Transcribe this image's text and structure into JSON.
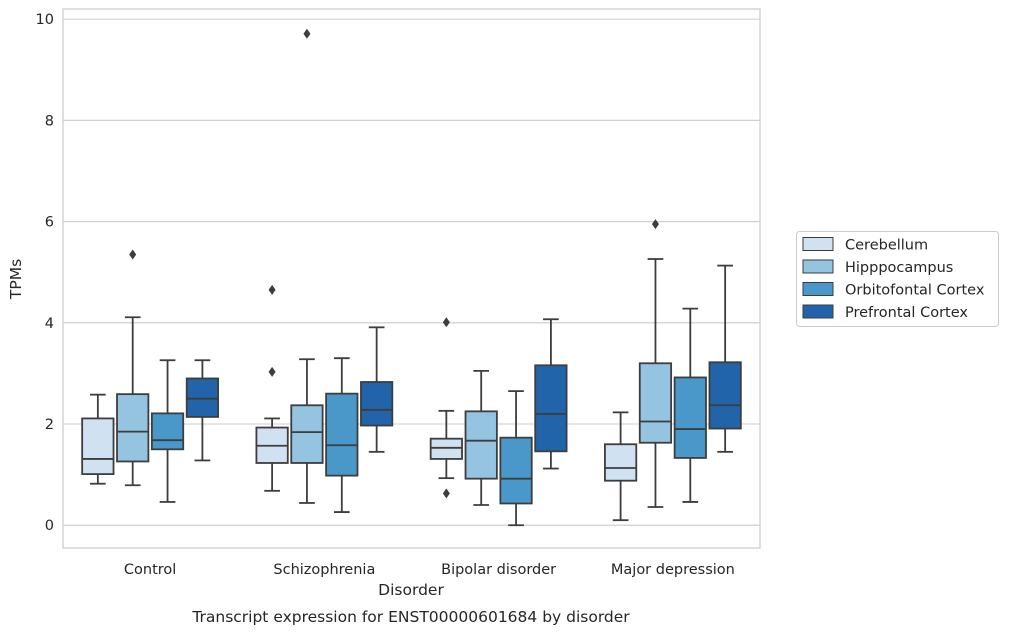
{
  "chart_data": {
    "type": "box",
    "xlabel": "Disorder",
    "ylabel": "TPMs",
    "caption": "Transcript expression for ENST00000601684 by disorder",
    "ylim": [
      -0.45,
      10.2
    ],
    "yticks": [
      "0",
      "2",
      "4",
      "6",
      "8",
      "10"
    ],
    "grid": "horizontal",
    "legend_position": "right",
    "categories": [
      "Control",
      "Schizophrenia",
      "Bipolar disorder",
      "Major depression"
    ],
    "series": [
      {
        "name": "Cerebellum",
        "color": "#d0e1f2",
        "boxes": [
          {
            "whislo": 0.82,
            "q1": 1.01,
            "med": 1.31,
            "q3": 2.11,
            "whishi": 2.58,
            "fliers": []
          },
          {
            "whislo": 0.68,
            "q1": 1.23,
            "med": 1.57,
            "q3": 1.93,
            "whishi": 2.11,
            "fliers": [
              4.65,
              3.03
            ]
          },
          {
            "whislo": 0.93,
            "q1": 1.31,
            "med": 1.53,
            "q3": 1.71,
            "whishi": 2.26,
            "fliers": [
              4.01,
              0.63
            ]
          },
          {
            "whislo": 0.1,
            "q1": 0.88,
            "med": 1.13,
            "q3": 1.6,
            "whishi": 2.23,
            "fliers": []
          }
        ]
      },
      {
        "name": "Hipppocampus",
        "color": "#94c4df",
        "boxes": [
          {
            "whislo": 0.79,
            "q1": 1.26,
            "med": 1.85,
            "q3": 2.59,
            "whishi": 4.11,
            "fliers": [
              5.35
            ]
          },
          {
            "whislo": 0.44,
            "q1": 1.23,
            "med": 1.84,
            "q3": 2.37,
            "whishi": 3.28,
            "fliers": [
              9.71
            ]
          },
          {
            "whislo": 0.4,
            "q1": 0.92,
            "med": 1.67,
            "q3": 2.25,
            "whishi": 3.05,
            "fliers": []
          },
          {
            "whislo": 0.36,
            "q1": 1.63,
            "med": 2.05,
            "q3": 3.2,
            "whishi": 5.26,
            "fliers": [
              5.95
            ]
          }
        ]
      },
      {
        "name": "Orbitofontal Cortex",
        "color": "#4a98c9",
        "boxes": [
          {
            "whislo": 0.46,
            "q1": 1.5,
            "med": 1.68,
            "q3": 2.21,
            "whishi": 3.26,
            "fliers": []
          },
          {
            "whislo": 0.26,
            "q1": 0.98,
            "med": 1.58,
            "q3": 2.6,
            "whishi": 3.3,
            "fliers": []
          },
          {
            "whislo": 0.0,
            "q1": 0.43,
            "med": 0.92,
            "q3": 1.73,
            "whishi": 2.65,
            "fliers": []
          },
          {
            "whislo": 0.46,
            "q1": 1.33,
            "med": 1.9,
            "q3": 2.92,
            "whishi": 4.28,
            "fliers": []
          }
        ]
      },
      {
        "name": "Prefrontal Cortex",
        "color": "#2264aa",
        "boxes": [
          {
            "whislo": 1.28,
            "q1": 2.14,
            "med": 2.5,
            "q3": 2.9,
            "whishi": 3.26,
            "fliers": []
          },
          {
            "whislo": 1.45,
            "q1": 1.97,
            "med": 2.28,
            "q3": 2.83,
            "whishi": 3.91,
            "fliers": []
          },
          {
            "whislo": 1.12,
            "q1": 1.46,
            "med": 2.2,
            "q3": 3.16,
            "whishi": 4.07,
            "fliers": []
          },
          {
            "whislo": 1.45,
            "q1": 1.91,
            "med": 2.37,
            "q3": 3.22,
            "whishi": 5.13,
            "fliers": []
          }
        ]
      }
    ]
  }
}
